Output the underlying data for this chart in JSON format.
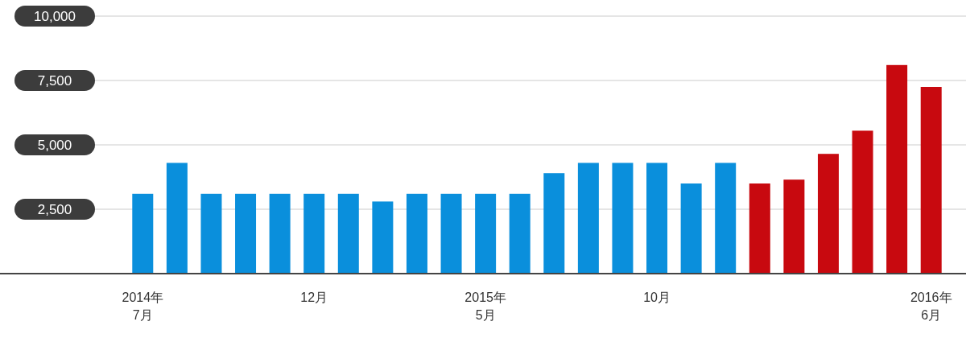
{
  "chart_data": {
    "type": "bar",
    "categories": [
      "2014年\n7月",
      null,
      null,
      null,
      null,
      "12月",
      null,
      null,
      null,
      null,
      "2015年\n5月",
      null,
      null,
      null,
      null,
      "10月",
      null,
      null,
      null,
      null,
      null,
      null,
      null,
      "2016年\n6月"
    ],
    "values": [
      3100,
      4300,
      3100,
      3100,
      3100,
      3100,
      3100,
      2800,
      3100,
      3100,
      3100,
      3100,
      3900,
      4300,
      4300,
      4300,
      3500,
      4300,
      3500,
      3650,
      4650,
      5550,
      8100,
      7250
    ],
    "colors": [
      "#0a8fdc",
      "#0a8fdc",
      "#0a8fdc",
      "#0a8fdc",
      "#0a8fdc",
      "#0a8fdc",
      "#0a8fdc",
      "#0a8fdc",
      "#0a8fdc",
      "#0a8fdc",
      "#0a8fdc",
      "#0a8fdc",
      "#0a8fdc",
      "#0a8fdc",
      "#0a8fdc",
      "#0a8fdc",
      "#0a8fdc",
      "#0a8fdc",
      "#c8090f",
      "#c8090f",
      "#c8090f",
      "#c8090f",
      "#c8090f",
      "#c8090f"
    ],
    "ylim": [
      0,
      10000
    ],
    "yticks": [
      {
        "value": 0,
        "label": null
      },
      {
        "value": 2500,
        "label": "2,500"
      },
      {
        "value": 5000,
        "label": "5,000"
      },
      {
        "value": 7500,
        "label": "7,500"
      },
      {
        "value": 10000,
        "label": "10,000"
      }
    ],
    "grid": "y"
  }
}
